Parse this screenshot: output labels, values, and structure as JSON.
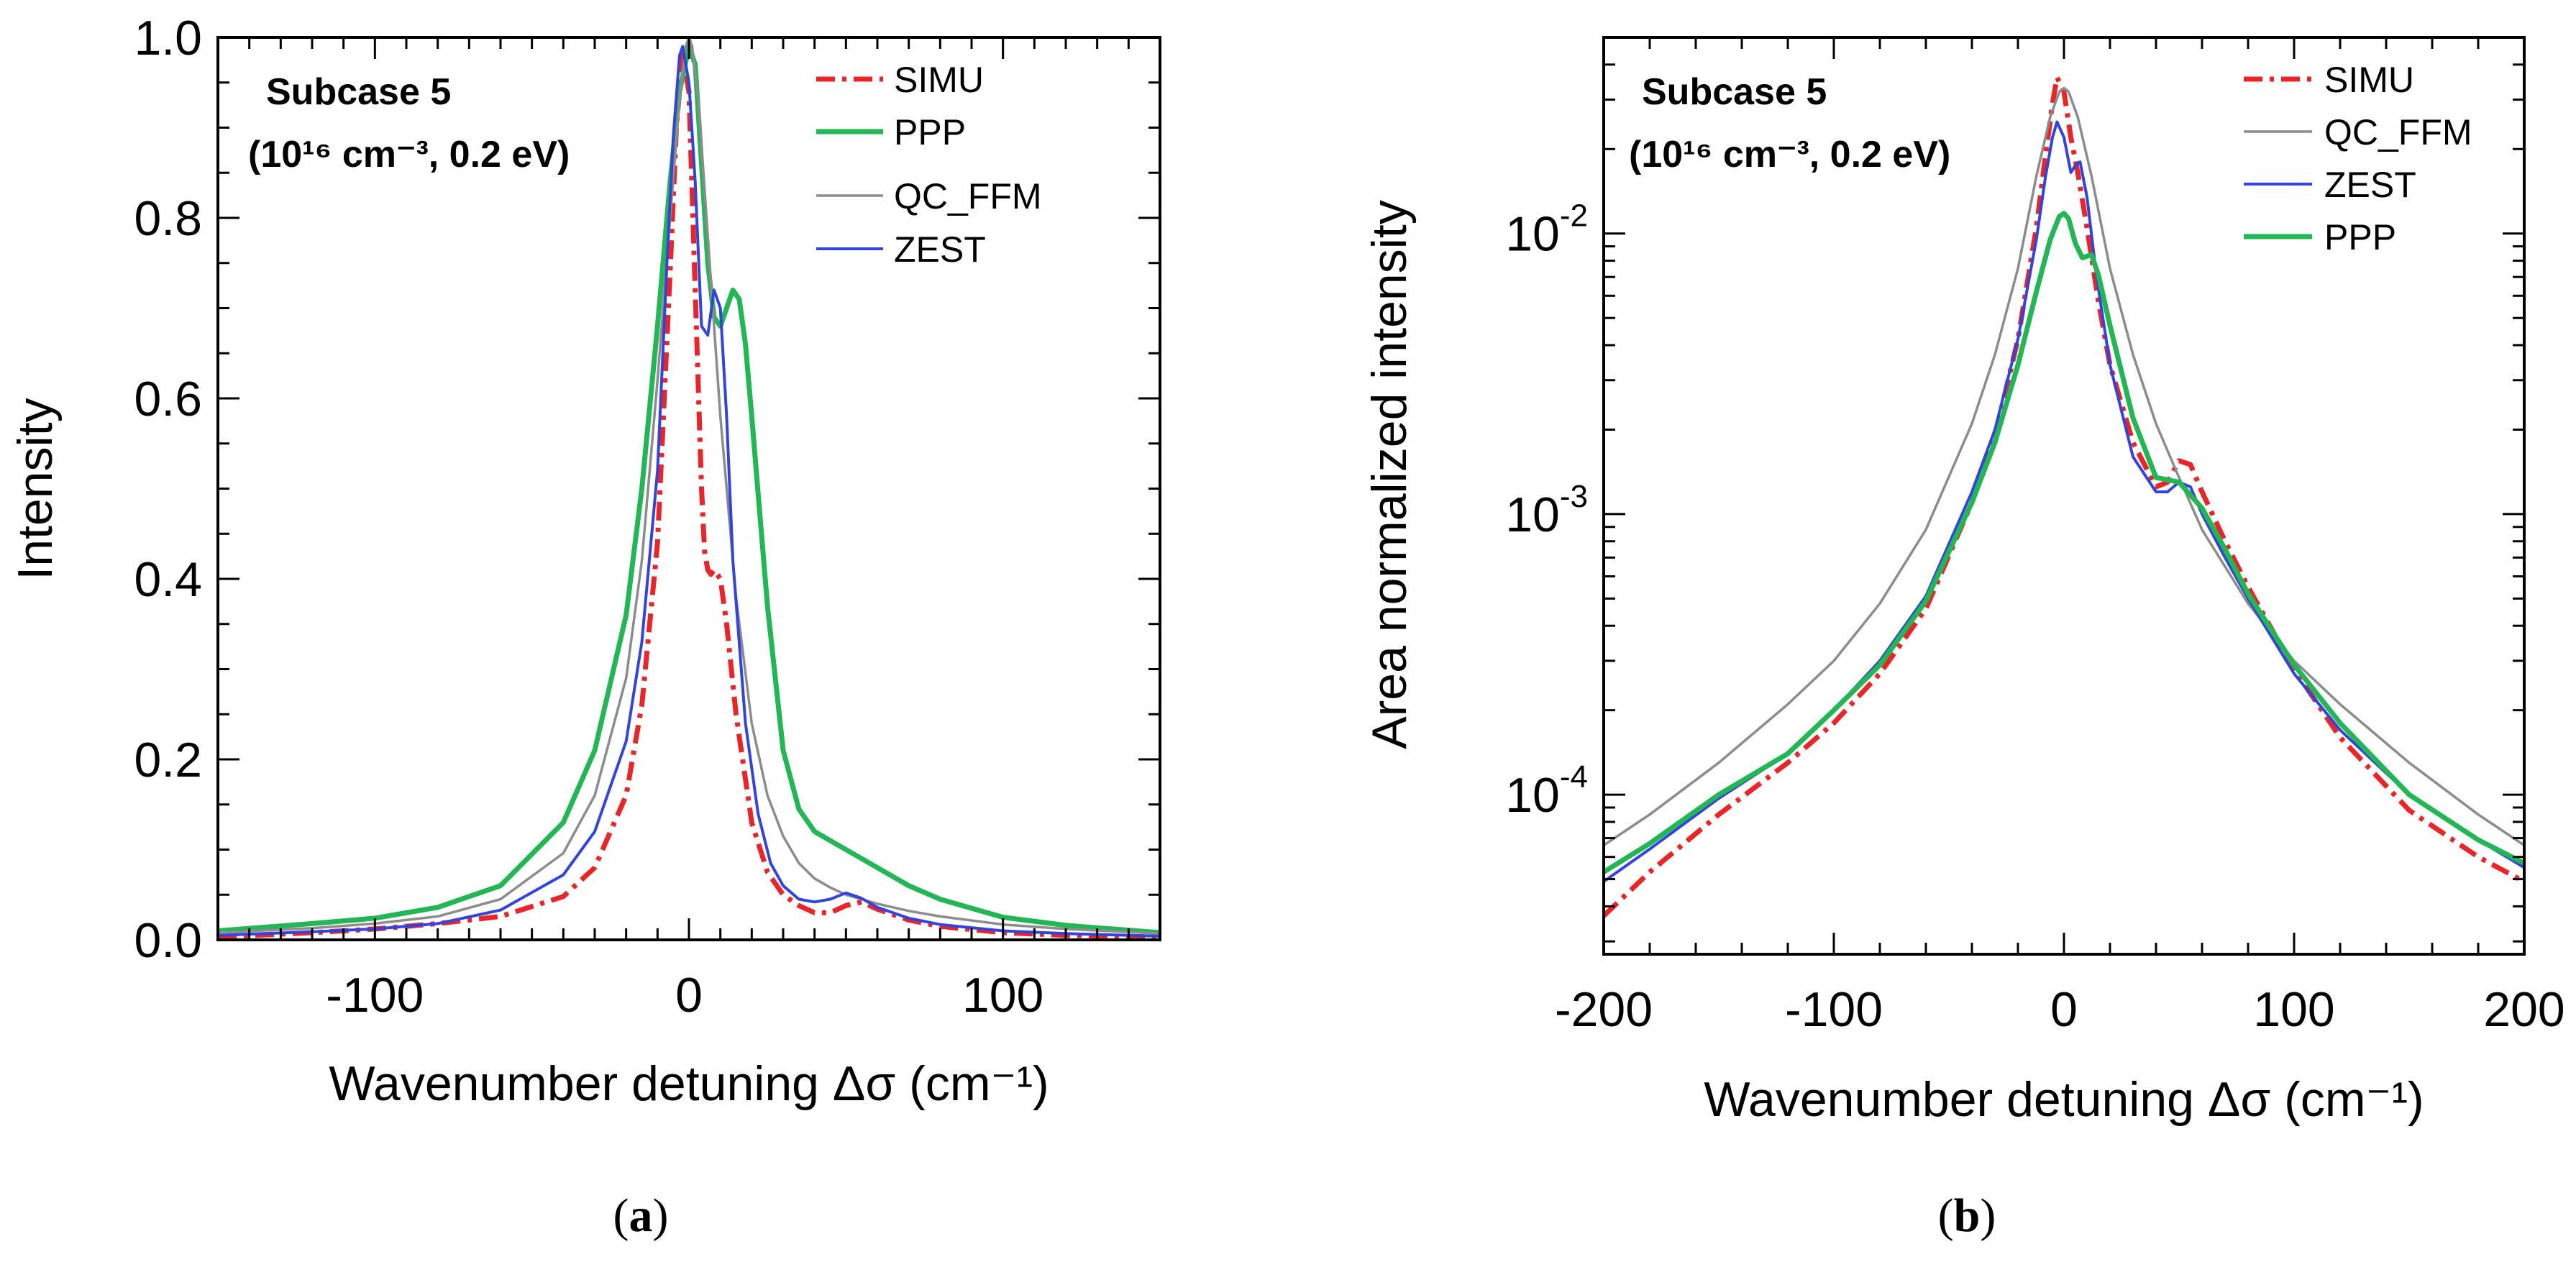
{
  "chart_data": [
    {
      "id": "a",
      "type": "line",
      "caption": "(a)",
      "caption_letter": "a",
      "annotation": {
        "title": "Subcase 5",
        "conditions": "(10¹⁶ cm⁻³, 0.2 eV)"
      },
      "xlabel": "Wavenumber detuning Δσ (cm⁻¹)",
      "ylabel": "Intensity",
      "xlim": [
        -150,
        150
      ],
      "ylim": [
        0,
        1
      ],
      "yscale": "linear",
      "xticks": [
        -100,
        0,
        100
      ],
      "xtick_labels": [
        "-100",
        "0",
        "100"
      ],
      "yticks": [
        0,
        0.2,
        0.4,
        0.6,
        0.8,
        1.0
      ],
      "ytick_labels": [
        "0.0",
        "0.2",
        "0.4",
        "0.6",
        "0.8",
        "1.0"
      ],
      "legend_position": "top-right",
      "series": [
        {
          "name": "SIMU",
          "color": "#e8262a",
          "style": "dashdot",
          "x": [
            -150,
            -120,
            -100,
            -80,
            -60,
            -40,
            -30,
            -20,
            -15,
            -10,
            -6,
            -4,
            -2,
            0,
            2,
            4,
            5,
            6,
            7,
            8,
            10,
            12,
            15,
            20,
            25,
            30,
            35,
            40,
            45,
            50,
            55,
            60,
            70,
            80,
            100,
            120,
            150
          ],
          "y": [
            0.003,
            0.008,
            0.012,
            0.018,
            0.026,
            0.048,
            0.08,
            0.16,
            0.26,
            0.44,
            0.74,
            0.9,
            0.98,
            0.94,
            0.72,
            0.5,
            0.43,
            0.41,
            0.405,
            0.41,
            0.4,
            0.35,
            0.25,
            0.13,
            0.075,
            0.05,
            0.038,
            0.03,
            0.03,
            0.038,
            0.042,
            0.034,
            0.022,
            0.015,
            0.008,
            0.005,
            0.003
          ]
        },
        {
          "name": "PPP",
          "color": "#22b655",
          "style": "solid",
          "x": [
            -150,
            -120,
            -100,
            -80,
            -60,
            -40,
            -30,
            -20,
            -15,
            -10,
            -6,
            -3,
            0,
            2,
            4,
            6,
            8,
            10,
            12,
            14,
            16,
            18,
            20,
            25,
            30,
            35,
            40,
            45,
            50,
            55,
            60,
            70,
            80,
            100,
            120,
            150
          ],
          "y": [
            0.01,
            0.018,
            0.024,
            0.036,
            0.06,
            0.13,
            0.21,
            0.36,
            0.5,
            0.68,
            0.84,
            0.94,
            0.99,
            0.97,
            0.86,
            0.75,
            0.69,
            0.68,
            0.7,
            0.72,
            0.71,
            0.66,
            0.58,
            0.37,
            0.21,
            0.145,
            0.12,
            0.11,
            0.1,
            0.09,
            0.08,
            0.06,
            0.045,
            0.025,
            0.016,
            0.008
          ]
        },
        {
          "name": "QC_FFM",
          "color": "#8c8c8c",
          "style": "solid",
          "x": [
            -150,
            -120,
            -100,
            -80,
            -60,
            -40,
            -30,
            -20,
            -15,
            -10,
            -6,
            -3,
            -1,
            0,
            1,
            3,
            6,
            10,
            15,
            20,
            25,
            30,
            35,
            40,
            45,
            50,
            60,
            70,
            80,
            100,
            120,
            150
          ],
          "y": [
            0.008,
            0.013,
            0.018,
            0.026,
            0.045,
            0.096,
            0.16,
            0.29,
            0.42,
            0.62,
            0.8,
            0.93,
            0.99,
            1.0,
            0.99,
            0.93,
            0.78,
            0.58,
            0.38,
            0.24,
            0.16,
            0.115,
            0.085,
            0.068,
            0.058,
            0.05,
            0.04,
            0.032,
            0.026,
            0.017,
            0.012,
            0.007
          ]
        },
        {
          "name": "ZEST",
          "color": "#3344dd",
          "style": "solid",
          "x": [
            -150,
            -120,
            -100,
            -80,
            -60,
            -40,
            -30,
            -20,
            -15,
            -10,
            -7,
            -5,
            -3,
            -2,
            0,
            2,
            4,
            6,
            8,
            10,
            12,
            14,
            18,
            22,
            26,
            30,
            35,
            40,
            45,
            50,
            55,
            60,
            70,
            80,
            100,
            120,
            150
          ],
          "y": [
            0.005,
            0.009,
            0.012,
            0.018,
            0.033,
            0.072,
            0.12,
            0.22,
            0.33,
            0.52,
            0.75,
            0.89,
            0.98,
            0.99,
            0.95,
            0.84,
            0.68,
            0.67,
            0.72,
            0.7,
            0.58,
            0.42,
            0.24,
            0.14,
            0.085,
            0.06,
            0.045,
            0.042,
            0.045,
            0.052,
            0.046,
            0.036,
            0.024,
            0.017,
            0.01,
            0.007,
            0.004
          ]
        }
      ]
    },
    {
      "id": "b",
      "type": "line",
      "caption": "(b)",
      "caption_letter": "b",
      "annotation": {
        "title": "Subcase 5",
        "conditions": "(10¹⁶ cm⁻³, 0.2 eV)"
      },
      "xlabel": "Wavenumber detuning Δσ (cm⁻¹)",
      "ylabel": "Area normalized intensity",
      "xlim": [
        -200,
        200
      ],
      "ylim": [
        2.7e-05,
        0.05
      ],
      "yscale": "log",
      "xticks": [
        -200,
        -100,
        0,
        100,
        200
      ],
      "xtick_labels": [
        "-200",
        "-100",
        "0",
        "100",
        "200"
      ],
      "yticks": [
        0.0001,
        0.001,
        0.01
      ],
      "ytick_labels": [
        {
          "base": "10",
          "exp": "-4"
        },
        {
          "base": "10",
          "exp": "-3"
        },
        {
          "base": "10",
          "exp": "-2"
        }
      ],
      "legend_position": "top-right",
      "series": [
        {
          "name": "SIMU",
          "color": "#e8262a",
          "style": "dashdot",
          "x": [
            -200,
            -180,
            -150,
            -120,
            -100,
            -80,
            -60,
            -40,
            -30,
            -20,
            -12,
            -8,
            -5,
            -3,
            0,
            3,
            6,
            10,
            15,
            20,
            30,
            40,
            45,
            50,
            55,
            60,
            70,
            80,
            100,
            120,
            150,
            180,
            200
          ],
          "y": [
            3.7e-05,
            5.3e-05,
            8.5e-05,
            0.00013,
            0.00018,
            0.00027,
            0.00046,
            0.0011,
            0.0019,
            0.0042,
            0.0105,
            0.019,
            0.029,
            0.036,
            0.032,
            0.022,
            0.0165,
            0.0105,
            0.0057,
            0.0034,
            0.0018,
            0.00125,
            0.0013,
            0.00155,
            0.0015,
            0.0012,
            0.0008,
            0.00055,
            0.00028,
            0.00016,
            8.8e-05,
            6e-05,
            4.9e-05
          ]
        },
        {
          "name": "QC_FFM",
          "color": "#8c8c8c",
          "style": "solid",
          "x": [
            -200,
            -180,
            -150,
            -120,
            -100,
            -80,
            -60,
            -40,
            -30,
            -20,
            -12,
            -6,
            -2,
            0,
            2,
            6,
            12,
            20,
            30,
            40,
            50,
            60,
            80,
            100,
            120,
            150,
            180,
            200
          ],
          "y": [
            6.6e-05,
            8.5e-05,
            0.00013,
            0.00021,
            0.0003,
            0.00048,
            0.00088,
            0.0021,
            0.0037,
            0.0075,
            0.016,
            0.026,
            0.032,
            0.033,
            0.032,
            0.026,
            0.016,
            0.0075,
            0.0037,
            0.0021,
            0.00135,
            0.00088,
            0.00048,
            0.0003,
            0.00021,
            0.00013,
            8.5e-05,
            6.6e-05
          ]
        },
        {
          "name": "ZEST",
          "color": "#3344dd",
          "style": "solid",
          "x": [
            -200,
            -180,
            -150,
            -120,
            -100,
            -80,
            -60,
            -40,
            -30,
            -20,
            -12,
            -8,
            -5,
            -3,
            0,
            3,
            5,
            7,
            10,
            14,
            20,
            30,
            40,
            45,
            50,
            55,
            60,
            70,
            80,
            100,
            120,
            150,
            180,
            200
          ],
          "y": [
            4.9e-05,
            6.4e-05,
            9.7e-05,
            0.00014,
            0.0002,
            0.0003,
            0.00051,
            0.0012,
            0.002,
            0.0042,
            0.0095,
            0.016,
            0.022,
            0.025,
            0.022,
            0.0165,
            0.0175,
            0.018,
            0.0135,
            0.0072,
            0.0034,
            0.0016,
            0.0012,
            0.0012,
            0.0013,
            0.00125,
            0.001,
            0.0007,
            0.0005,
            0.00027,
            0.00017,
            0.0001,
            6.9e-05,
            5.5e-05
          ]
        },
        {
          "name": "PPP",
          "color": "#22b655",
          "style": "solid",
          "x": [
            -200,
            -180,
            -150,
            -120,
            -100,
            -80,
            -60,
            -40,
            -30,
            -20,
            -12,
            -6,
            -2,
            0,
            2,
            5,
            8,
            10,
            12,
            15,
            20,
            30,
            40,
            50,
            60,
            70,
            80,
            100,
            120,
            150,
            180,
            200
          ],
          "y": [
            5.3e-05,
            6.7e-05,
            0.0001,
            0.00014,
            0.0002,
            0.00029,
            0.00049,
            0.0011,
            0.0018,
            0.0034,
            0.0062,
            0.0095,
            0.0115,
            0.0118,
            0.0113,
            0.0092,
            0.0082,
            0.0083,
            0.0084,
            0.0071,
            0.0047,
            0.0022,
            0.00135,
            0.0013,
            0.00105,
            0.00075,
            0.00052,
            0.00029,
            0.00018,
            0.0001,
            6.9e-05,
            5.7e-05
          ]
        }
      ]
    }
  ]
}
